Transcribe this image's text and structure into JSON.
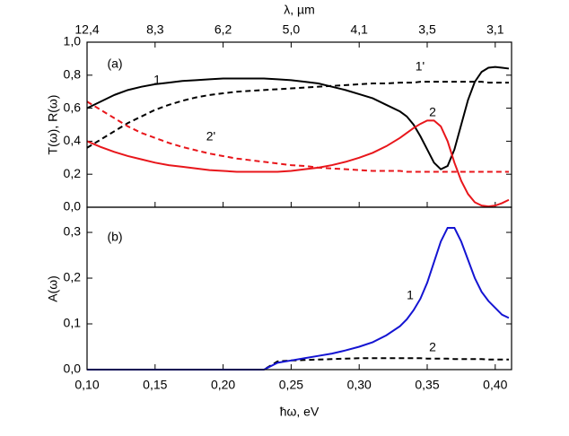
{
  "chart_data": [
    {
      "type": "line",
      "label": "(a)",
      "ylabel": "T(ω), R(ω)",
      "x2label": "λ, µm",
      "xlim": [
        0.1,
        0.412
      ],
      "ylim": [
        0,
        1
      ],
      "yticks": [
        {
          "value": 0,
          "label": "0,0"
        },
        {
          "value": 0.2,
          "label": "0,2"
        },
        {
          "value": 0.4,
          "label": "0,4"
        },
        {
          "value": 0.6,
          "label": "0,6"
        },
        {
          "value": 0.8,
          "label": "0,8"
        },
        {
          "value": 1,
          "label": "1,0"
        }
      ],
      "x2ticks": [
        {
          "value": 0.1,
          "label": "12,4"
        },
        {
          "value": 0.15,
          "label": "8,3"
        },
        {
          "value": 0.2,
          "label": "6,2"
        },
        {
          "value": 0.25,
          "label": "5,0"
        },
        {
          "value": 0.3,
          "label": "4,1"
        },
        {
          "value": 0.35,
          "label": "3,5"
        },
        {
          "value": 0.4,
          "label": "3,1"
        }
      ],
      "x": [
        0.1,
        0.11,
        0.12,
        0.13,
        0.14,
        0.15,
        0.16,
        0.17,
        0.18,
        0.19,
        0.2,
        0.21,
        0.22,
        0.23,
        0.24,
        0.25,
        0.26,
        0.27,
        0.28,
        0.29,
        0.3,
        0.31,
        0.32,
        0.33,
        0.335,
        0.34,
        0.345,
        0.35,
        0.355,
        0.36,
        0.365,
        0.37,
        0.375,
        0.38,
        0.385,
        0.39,
        0.395,
        0.4,
        0.405,
        0.41
      ],
      "series": [
        {
          "name": "1",
          "color": "#000000",
          "dashed": false,
          "values": [
            0.6,
            0.64,
            0.68,
            0.71,
            0.73,
            0.745,
            0.755,
            0.765,
            0.77,
            0.775,
            0.78,
            0.78,
            0.78,
            0.78,
            0.775,
            0.77,
            0.76,
            0.75,
            0.73,
            0.71,
            0.685,
            0.66,
            0.62,
            0.58,
            0.55,
            0.5,
            0.43,
            0.35,
            0.27,
            0.23,
            0.25,
            0.35,
            0.5,
            0.65,
            0.76,
            0.82,
            0.845,
            0.85,
            0.845,
            0.84
          ]
        },
        {
          "name": "1'",
          "color": "#000000",
          "dashed": true,
          "values": [
            0.36,
            0.41,
            0.46,
            0.51,
            0.55,
            0.59,
            0.62,
            0.645,
            0.665,
            0.68,
            0.69,
            0.7,
            0.705,
            0.71,
            0.715,
            0.72,
            0.725,
            0.73,
            0.735,
            0.74,
            0.745,
            0.75,
            0.75,
            0.755,
            0.755,
            0.755,
            0.76,
            0.76,
            0.76,
            0.76,
            0.76,
            0.76,
            0.76,
            0.76,
            0.76,
            0.76,
            0.755,
            0.755,
            0.755,
            0.755
          ]
        },
        {
          "name": "2",
          "color": "#e8161b",
          "dashed": false,
          "values": [
            0.4,
            0.365,
            0.335,
            0.31,
            0.29,
            0.27,
            0.255,
            0.245,
            0.235,
            0.225,
            0.22,
            0.215,
            0.215,
            0.215,
            0.215,
            0.22,
            0.23,
            0.24,
            0.255,
            0.275,
            0.3,
            0.33,
            0.37,
            0.42,
            0.45,
            0.48,
            0.505,
            0.525,
            0.525,
            0.49,
            0.4,
            0.27,
            0.16,
            0.08,
            0.03,
            0.01,
            0.005,
            0.01,
            0.025,
            0.045
          ]
        },
        {
          "name": "2'",
          "color": "#e8161b",
          "dashed": true,
          "values": [
            0.64,
            0.59,
            0.54,
            0.49,
            0.45,
            0.42,
            0.39,
            0.365,
            0.345,
            0.325,
            0.31,
            0.295,
            0.285,
            0.275,
            0.265,
            0.255,
            0.25,
            0.24,
            0.235,
            0.23,
            0.225,
            0.22,
            0.22,
            0.22,
            0.215,
            0.215,
            0.215,
            0.215,
            0.215,
            0.215,
            0.215,
            0.215,
            0.215,
            0.215,
            0.215,
            0.215,
            0.215,
            0.215,
            0.215,
            0.215
          ]
        }
      ]
    },
    {
      "type": "line",
      "label": "(b)",
      "ylabel": "A(ω)",
      "xlabel": "ħω, eV",
      "xlim": [
        0.1,
        0.412
      ],
      "ylim": [
        0,
        0.355
      ],
      "yticks": [
        {
          "value": 0,
          "label": "0,0"
        },
        {
          "value": 0.1,
          "label": "0,1"
        },
        {
          "value": 0.2,
          "label": "0,2"
        },
        {
          "value": 0.3,
          "label": "0,3"
        }
      ],
      "xticks": [
        {
          "value": 0.1,
          "label": "0,10"
        },
        {
          "value": 0.15,
          "label": "0,15"
        },
        {
          "value": 0.2,
          "label": "0,20"
        },
        {
          "value": 0.25,
          "label": "0,25"
        },
        {
          "value": 0.3,
          "label": "0,30"
        },
        {
          "value": 0.35,
          "label": "0,35"
        },
        {
          "value": 0.4,
          "label": "0,40"
        }
      ],
      "x": [
        0.1,
        0.11,
        0.12,
        0.13,
        0.14,
        0.15,
        0.16,
        0.17,
        0.18,
        0.19,
        0.2,
        0.21,
        0.22,
        0.23,
        0.24,
        0.25,
        0.26,
        0.27,
        0.28,
        0.29,
        0.3,
        0.31,
        0.32,
        0.33,
        0.335,
        0.34,
        0.345,
        0.35,
        0.355,
        0.36,
        0.365,
        0.37,
        0.375,
        0.38,
        0.385,
        0.39,
        0.395,
        0.4,
        0.405,
        0.41
      ],
      "series": [
        {
          "name": "2",
          "color": "#000000",
          "dashed": true,
          "values": [
            0,
            0,
            0,
            0,
            0,
            0,
            0,
            0,
            0,
            0,
            0,
            0,
            0,
            0,
            0.018,
            0.02,
            0.021,
            0.022,
            0.023,
            0.024,
            0.025,
            0.025,
            0.025,
            0.025,
            0.025,
            0.025,
            0.025,
            0.024,
            0.024,
            0.024,
            0.024,
            0.023,
            0.023,
            0.023,
            0.023,
            0.023,
            0.022,
            0.022,
            0.022,
            0.022
          ]
        },
        {
          "name": "1",
          "color": "#1414d2",
          "dashed": false,
          "values": [
            0,
            0,
            0,
            0,
            0,
            0,
            0,
            0,
            0,
            0,
            0,
            0,
            0,
            0,
            0.015,
            0.02,
            0.025,
            0.03,
            0.035,
            0.042,
            0.05,
            0.06,
            0.075,
            0.095,
            0.11,
            0.13,
            0.155,
            0.19,
            0.235,
            0.28,
            0.31,
            0.31,
            0.28,
            0.24,
            0.2,
            0.17,
            0.15,
            0.135,
            0.12,
            0.113
          ]
        }
      ]
    }
  ]
}
